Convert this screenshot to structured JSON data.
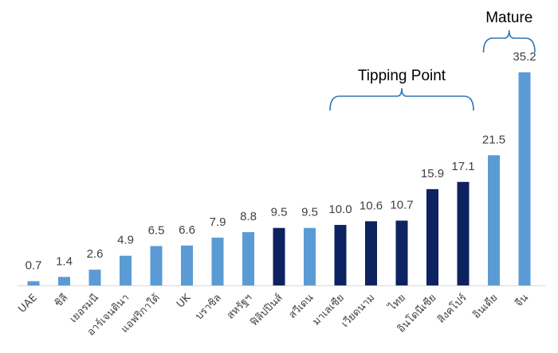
{
  "chart_data": {
    "type": "bar",
    "categories": [
      "UAE",
      "ชิลี",
      "เยอรมนี",
      "อาร์เจนตินา",
      "แอฟริกาใต้",
      "UK",
      "บราซิล",
      "สหรัฐฯ",
      "ฟิลิปปินส์",
      "สวีเดน",
      "มาเลเซีย",
      "เวียดนาม",
      "ไทย",
      "อินโดนีเซีย",
      "สิงคโปร์",
      "อินเดีย",
      "จีน"
    ],
    "values": [
      0.7,
      1.4,
      2.6,
      4.9,
      6.5,
      6.6,
      7.9,
      8.8,
      9.5,
      9.5,
      10.0,
      10.6,
      10.7,
      15.9,
      17.1,
      21.5,
      35.2
    ],
    "value_labels": [
      "0.7",
      "1.4",
      "2.6",
      "4.9",
      "6.5",
      "6.6",
      "7.9",
      "8.8",
      "9.5",
      "9.5",
      "10.0",
      "10.6",
      "10.7",
      "15.9",
      "17.1",
      "21.5",
      "35.2"
    ],
    "bar_colors": [
      "#5b9bd5",
      "#5b9bd5",
      "#5b9bd5",
      "#5b9bd5",
      "#5b9bd5",
      "#5b9bd5",
      "#5b9bd5",
      "#5b9bd5",
      "#0d2260",
      "#5b9bd5",
      "#0d2260",
      "#0d2260",
      "#0d2260",
      "#0d2260",
      "#0d2260",
      "#5b9bd5",
      "#5b9bd5"
    ],
    "annotations": [
      {
        "text": "Tipping Point",
        "from_category": "มาเลเซีย",
        "to_category": "สิงคโปร์"
      },
      {
        "text": "Mature",
        "from_category": "อินเดีย",
        "to_category": "จีน"
      }
    ],
    "ylim": [
      0,
      35.2
    ],
    "grid": false,
    "legend": "none",
    "colors": {
      "light": "#5b9bd5",
      "dark": "#0d2260",
      "bracket": "#2e75b6",
      "axis": "#d9d9d9",
      "text": "#404040"
    }
  }
}
